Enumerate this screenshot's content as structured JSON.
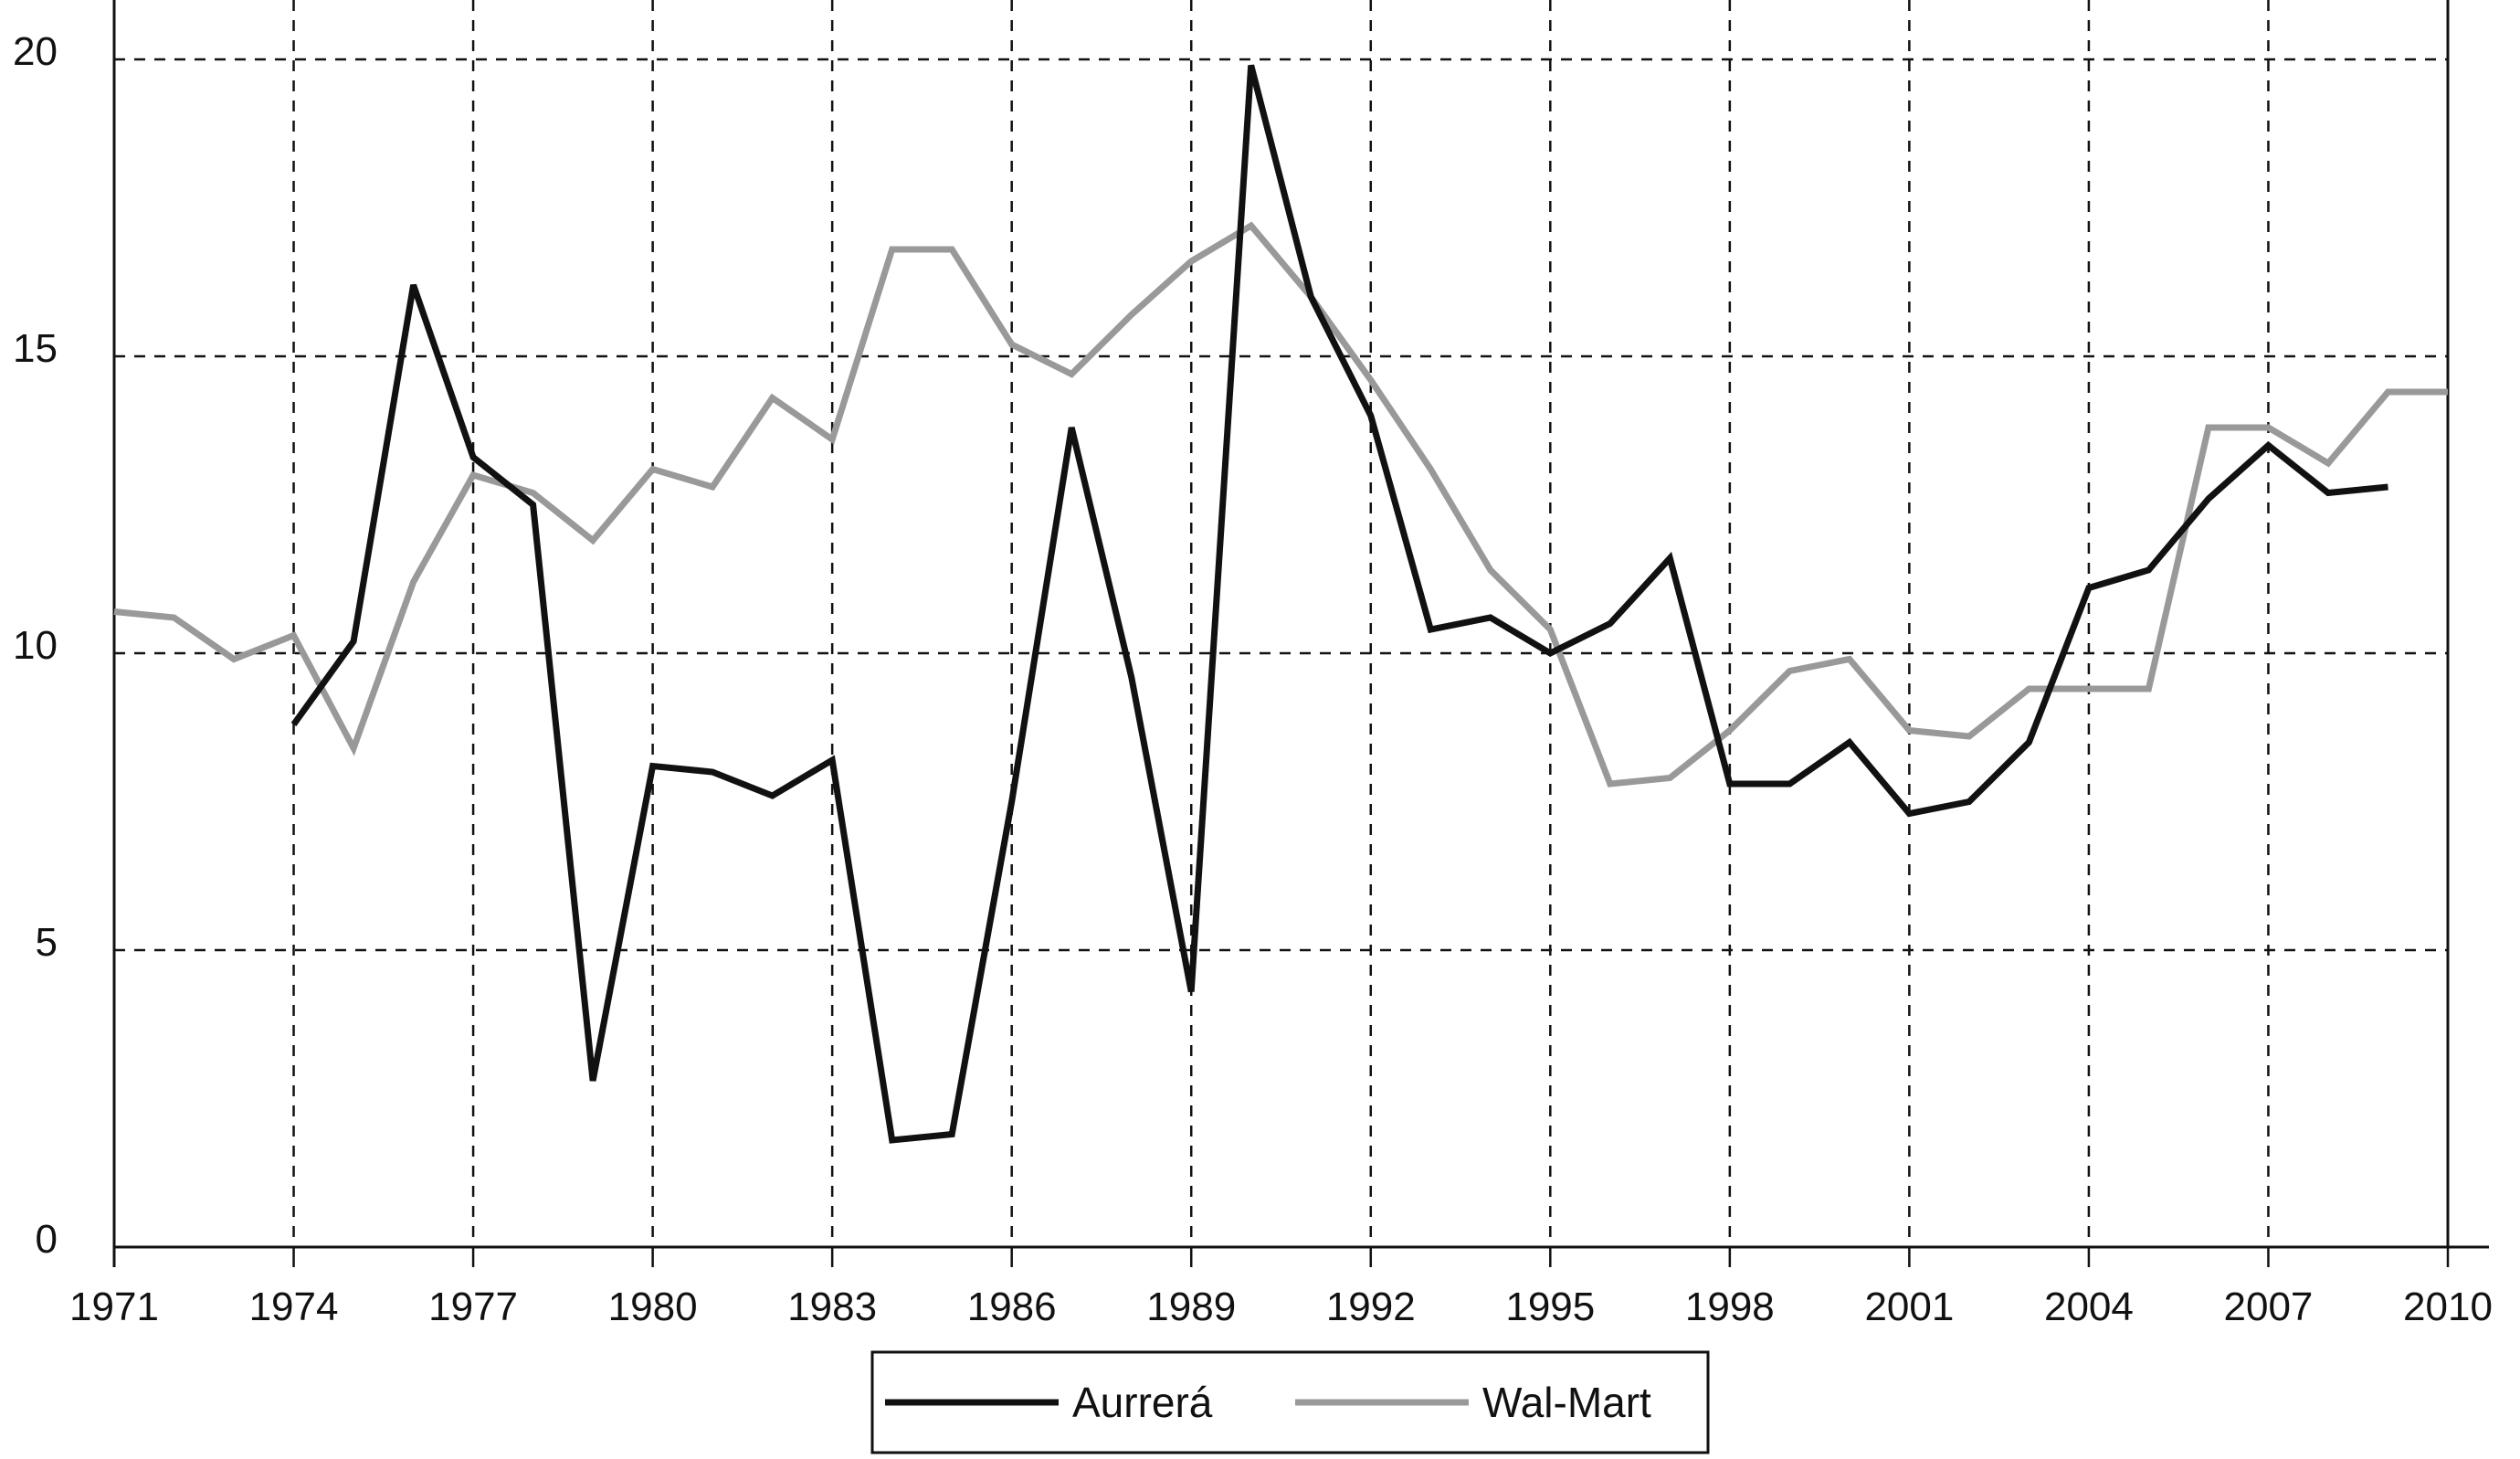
{
  "chart_data": {
    "type": "line",
    "title": "",
    "xlabel": "",
    "ylabel": "",
    "x": [
      1971,
      1972,
      1973,
      1974,
      1975,
      1976,
      1977,
      1978,
      1979,
      1980,
      1981,
      1982,
      1983,
      1984,
      1985,
      1986,
      1987,
      1988,
      1989,
      1990,
      1991,
      1992,
      1993,
      1994,
      1995,
      1996,
      1997,
      1998,
      1999,
      2000,
      2001,
      2002,
      2003,
      2004,
      2005,
      2006,
      2007,
      2008,
      2009,
      2010
    ],
    "xlim": [
      1971,
      2010
    ],
    "ylim": [
      0,
      21
    ],
    "x_ticks": [
      "1971",
      "1974",
      "1977",
      "1980",
      "1983",
      "1986",
      "1989",
      "1992",
      "1995",
      "1998",
      "2001",
      "2004",
      "2007",
      "2010"
    ],
    "y_ticks": [
      "0",
      "5",
      "10",
      "15",
      "20"
    ],
    "grid": true,
    "grid_style": "dashed",
    "legend_position": "bottom-center",
    "series": [
      {
        "name": "Aurrerá",
        "color": "#111111",
        "values": [
          null,
          null,
          null,
          8.8,
          10.2,
          16.2,
          13.3,
          12.5,
          2.8,
          8.1,
          8.0,
          7.6,
          8.2,
          1.8,
          1.9,
          7.5,
          13.8,
          9.6,
          4.3,
          19.9,
          16.0,
          14.0,
          10.4,
          10.6,
          10.0,
          10.5,
          11.6,
          7.8,
          7.8,
          8.5,
          7.3,
          7.5,
          8.5,
          11.1,
          11.4,
          12.6,
          13.5,
          12.7,
          12.8,
          null
        ]
      },
      {
        "name": "Wal-Mart",
        "color": "#999999",
        "values": [
          10.7,
          10.6,
          9.9,
          10.3,
          8.4,
          11.2,
          13.0,
          12.7,
          11.9,
          13.1,
          12.8,
          14.3,
          13.6,
          16.8,
          16.8,
          15.2,
          14.7,
          15.7,
          16.6,
          17.2,
          16.0,
          14.6,
          13.1,
          11.4,
          10.4,
          7.8,
          7.9,
          8.7,
          9.7,
          9.9,
          8.7,
          8.6,
          9.4,
          9.4,
          9.4,
          13.8,
          13.8,
          13.2,
          14.4,
          14.4
        ]
      }
    ]
  }
}
